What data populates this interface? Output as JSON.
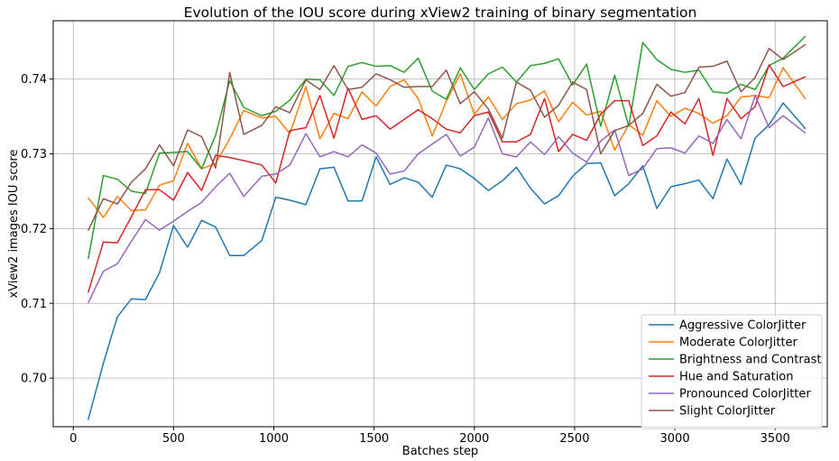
{
  "chart_data": {
    "type": "line",
    "title": "Evolution of the IOU score during xView2 training of binary segmentation",
    "xlabel": "Batches step",
    "ylabel": "xView2 images IOU score",
    "xlim": [
      -100,
      3760
    ],
    "ylim": [
      0.6935,
      0.7478
    ],
    "xticks": [
      0,
      500,
      1000,
      1500,
      2000,
      2500,
      3000,
      3500
    ],
    "yticks": [
      0.7,
      0.71,
      0.72,
      0.73,
      0.74
    ],
    "xtick_labels": [
      "0",
      "500",
      "1000",
      "1500",
      "2000",
      "2500",
      "3000",
      "3500"
    ],
    "ytick_labels": [
      "0.70",
      "0.71",
      "0.72",
      "0.73",
      "0.74"
    ],
    "grid": true,
    "legend_position": "lower-right",
    "x": [
      75,
      150,
      220,
      290,
      360,
      430,
      500,
      570,
      640,
      710,
      780,
      850,
      940,
      1010,
      1080,
      1160,
      1230,
      1300,
      1370,
      1440,
      1510,
      1580,
      1650,
      1720,
      1790,
      1860,
      1930,
      2000,
      2070,
      2140,
      2210,
      2280,
      2350,
      2420,
      2490,
      2560,
      2630,
      2700,
      2770,
      2840,
      2910,
      2980,
      3050,
      3120,
      3190,
      3260,
      3330,
      3400,
      3470,
      3540,
      3650
    ],
    "series": [
      {
        "name": "Aggressive ColorJitter",
        "color": "#1f77b4",
        "values": [
          0.6945,
          0.702,
          0.7082,
          0.7106,
          0.7105,
          0.7141,
          0.7204,
          0.7175,
          0.7211,
          0.7202,
          0.7164,
          0.7164,
          0.7184,
          0.7242,
          0.7238,
          0.7232,
          0.728,
          0.7282,
          0.7237,
          0.7237,
          0.7296,
          0.7259,
          0.7268,
          0.7262,
          0.7242,
          0.7285,
          0.728,
          0.7267,
          0.7251,
          0.7264,
          0.7282,
          0.7254,
          0.7233,
          0.7244,
          0.727,
          0.7287,
          0.7288,
          0.7244,
          0.726,
          0.7284,
          0.7227,
          0.7256,
          0.726,
          0.7265,
          0.724,
          0.7293,
          0.7259,
          0.7321,
          0.7339,
          0.7368,
          0.7334
        ]
      },
      {
        "name": "Moderate ColorJitter",
        "color": "#ff7f0e",
        "values": [
          0.7241,
          0.7215,
          0.7243,
          0.7224,
          0.7225,
          0.7258,
          0.7264,
          0.7314,
          0.728,
          0.7287,
          0.732,
          0.7358,
          0.7348,
          0.735,
          0.7327,
          0.739,
          0.732,
          0.7354,
          0.7347,
          0.7383,
          0.7364,
          0.739,
          0.7399,
          0.7374,
          0.7324,
          0.737,
          0.7407,
          0.7353,
          0.7376,
          0.7346,
          0.7367,
          0.7372,
          0.7384,
          0.7343,
          0.7369,
          0.7352,
          0.7357,
          0.7305,
          0.7339,
          0.7325,
          0.7371,
          0.735,
          0.7361,
          0.7354,
          0.7341,
          0.7351,
          0.7376,
          0.7378,
          0.7375,
          0.7415,
          0.7374
        ]
      },
      {
        "name": "Brightness and Contrast",
        "color": "#2ca02c",
        "values": [
          0.716,
          0.7271,
          0.7266,
          0.725,
          0.7247,
          0.7301,
          0.7302,
          0.7303,
          0.728,
          0.7325,
          0.7398,
          0.7362,
          0.7351,
          0.7357,
          0.7372,
          0.74,
          0.7399,
          0.7378,
          0.7417,
          0.7422,
          0.7417,
          0.7418,
          0.7409,
          0.7428,
          0.7384,
          0.7373,
          0.7415,
          0.7386,
          0.7407,
          0.7416,
          0.7396,
          0.7418,
          0.7421,
          0.7427,
          0.7392,
          0.742,
          0.7337,
          0.7405,
          0.7337,
          0.7449,
          0.7426,
          0.7413,
          0.7409,
          0.7412,
          0.7383,
          0.7381,
          0.7393,
          0.7386,
          0.7418,
          0.7428,
          0.7457
        ]
      },
      {
        "name": "Hue and Saturation",
        "color": "#d62728",
        "values": [
          0.7115,
          0.7182,
          0.7181,
          0.7216,
          0.7252,
          0.7252,
          0.7238,
          0.7275,
          0.7251,
          0.7298,
          0.7295,
          0.7291,
          0.7285,
          0.7261,
          0.7331,
          0.7335,
          0.7378,
          0.7321,
          0.7388,
          0.7346,
          0.7351,
          0.7333,
          0.7346,
          0.7359,
          0.7347,
          0.7333,
          0.7328,
          0.7351,
          0.7356,
          0.7316,
          0.7316,
          0.7326,
          0.7374,
          0.7303,
          0.7326,
          0.7318,
          0.7353,
          0.7371,
          0.7371,
          0.7311,
          0.7324,
          0.7356,
          0.734,
          0.7374,
          0.7298,
          0.7374,
          0.7347,
          0.7363,
          0.7419,
          0.739,
          0.7403
        ]
      },
      {
        "name": "Pronounced ColorJitter",
        "color": "#9467bd",
        "values": [
          0.7101,
          0.7143,
          0.7153,
          0.7183,
          0.7212,
          0.7198,
          0.721,
          0.7223,
          0.7235,
          0.7256,
          0.7274,
          0.7243,
          0.727,
          0.7273,
          0.7285,
          0.7327,
          0.7296,
          0.7303,
          0.7296,
          0.7312,
          0.7301,
          0.7273,
          0.7277,
          0.73,
          0.7313,
          0.7326,
          0.7297,
          0.7309,
          0.7348,
          0.73,
          0.7296,
          0.7316,
          0.7299,
          0.7323,
          0.7301,
          0.7289,
          0.7317,
          0.7332,
          0.7271,
          0.728,
          0.7307,
          0.7308,
          0.7301,
          0.7324,
          0.7314,
          0.7346,
          0.732,
          0.7378,
          0.7335,
          0.7351,
          0.7328
        ]
      },
      {
        "name": "Slight ColorJitter",
        "color": "#8c564b",
        "values": [
          0.7198,
          0.724,
          0.7233,
          0.7262,
          0.728,
          0.7312,
          0.7284,
          0.7332,
          0.7323,
          0.7281,
          0.7409,
          0.7326,
          0.7338,
          0.7363,
          0.7355,
          0.7399,
          0.7386,
          0.7418,
          0.7386,
          0.7389,
          0.7407,
          0.7399,
          0.7389,
          0.739,
          0.739,
          0.7412,
          0.7367,
          0.7383,
          0.736,
          0.7321,
          0.7396,
          0.7385,
          0.7349,
          0.7365,
          0.7396,
          0.7386,
          0.73,
          0.7331,
          0.7338,
          0.7354,
          0.7393,
          0.7377,
          0.7382,
          0.7416,
          0.7417,
          0.7424,
          0.7383,
          0.7402,
          0.7441,
          0.7426,
          0.7446
        ]
      }
    ]
  }
}
